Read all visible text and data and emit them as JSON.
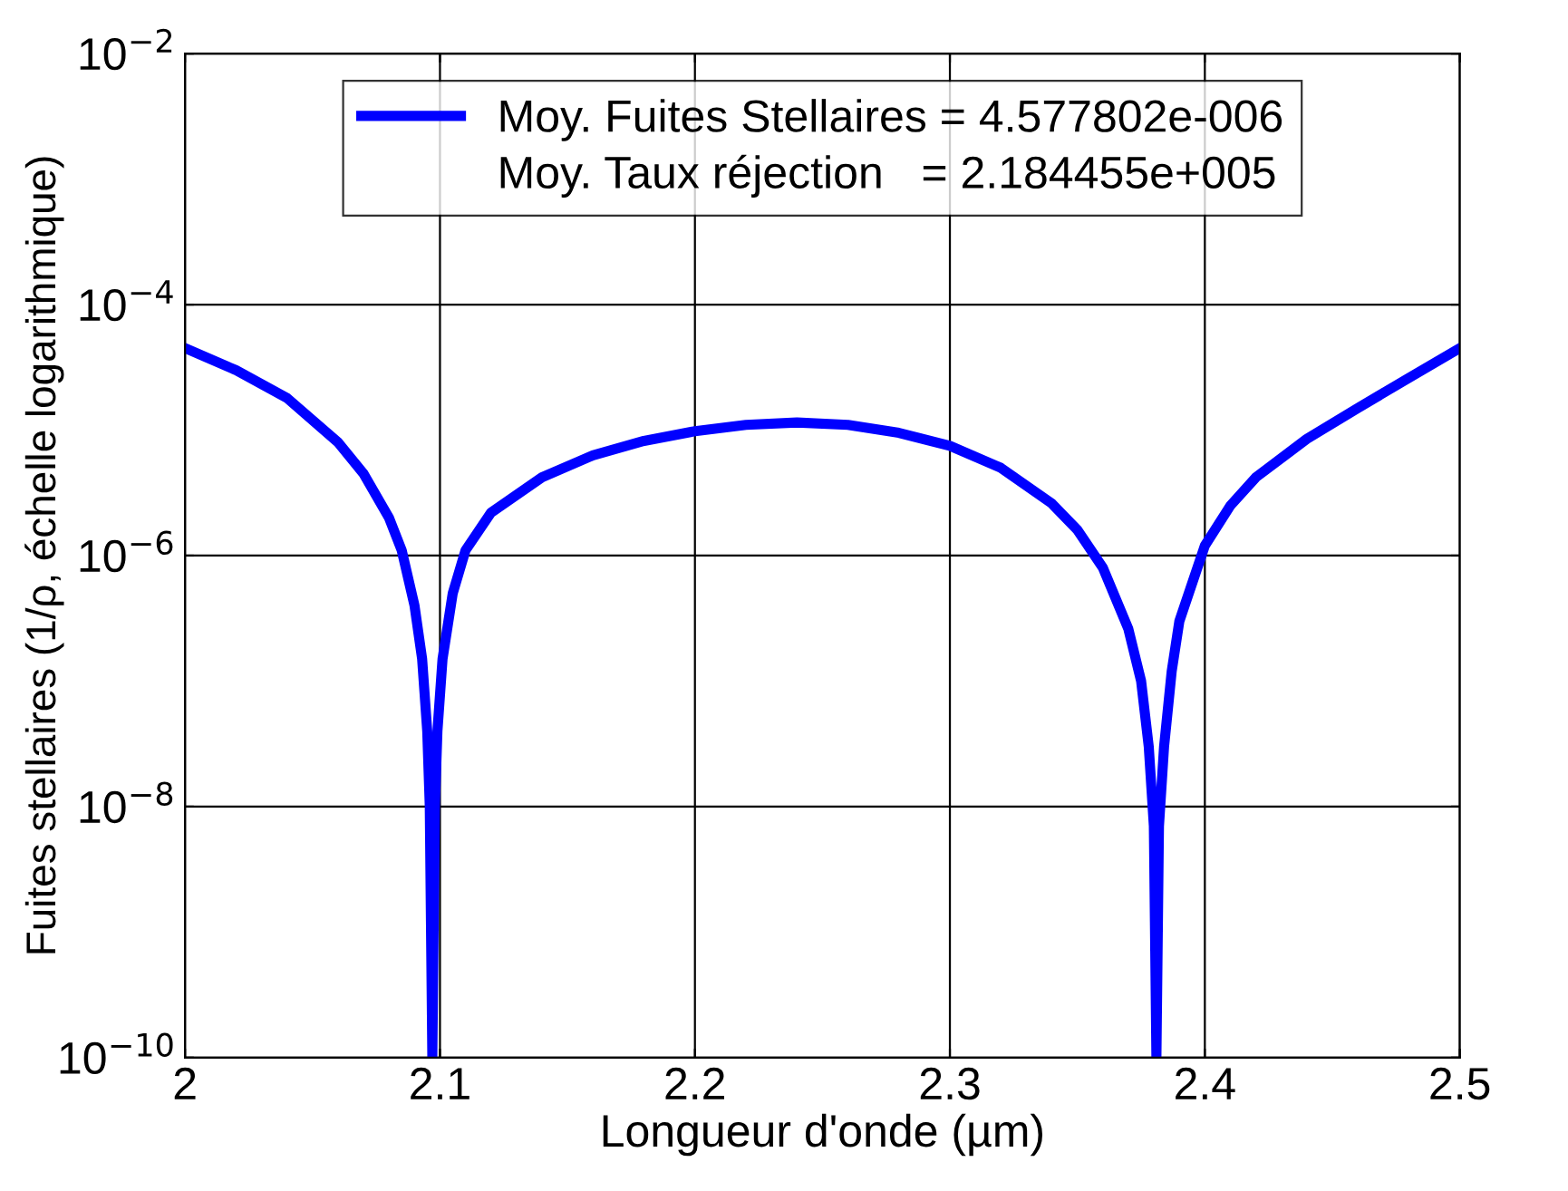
{
  "chart_data": {
    "type": "line",
    "xlabel": "Longueur d'onde (µm)",
    "ylabel": "Fuites stellaires (1/ρ, échelle logarithmique)",
    "log": "y",
    "grid": true,
    "legend": "top",
    "line_style": "solid",
    "marker": "none",
    "xlim": [
      2,
      2.5
    ],
    "xticks": [
      2,
      2.1,
      2.2,
      2.3,
      2.4,
      2.5
    ],
    "ylim": [
      1e-10,
      0.01
    ],
    "yticks": [
      {
        "value": 1e-10,
        "label": "10$^{−10}$"
      },
      {
        "value": 1e-08,
        "label": "10$^{−8}$"
      },
      {
        "value": 1e-06,
        "label": "10$^{−6}$"
      },
      {
        "value": 0.0001,
        "label": "10$^{−4}$"
      },
      {
        "value": 0.01,
        "label": "10$^{−2}$"
      }
    ],
    "annotations": [
      "Moy. Taux réjection   = 2.184455e+005"
    ],
    "series": [
      {
        "name": "Moy. Fuites Stellaires = 4.577802e-006",
        "color": "#0000ff",
        "x": [
          2.0,
          2.02,
          2.04,
          2.06,
          2.07,
          2.08,
          2.085,
          2.09,
          2.093,
          2.095,
          2.096,
          2.097,
          2.098,
          2.099,
          2.101,
          2.105,
          2.11,
          2.12,
          2.14,
          2.16,
          2.18,
          2.2,
          2.22,
          2.24,
          2.26,
          2.28,
          2.3,
          2.32,
          2.34,
          2.35,
          2.36,
          2.37,
          2.375,
          2.378,
          2.38,
          2.381,
          2.382,
          2.384,
          2.387,
          2.39,
          2.4,
          2.41,
          2.42,
          2.44,
          2.46,
          2.48,
          2.5
        ],
        "values": [
          4.5e-05,
          3e-05,
          1.8e-05,
          8e-06,
          4.5e-06,
          2e-06,
          1.1e-06,
          4e-07,
          1.5e-07,
          4e-08,
          1e-08,
          1e-10,
          1e-08,
          4e-08,
          1.5e-07,
          5e-07,
          1.1e-06,
          2.2e-06,
          4.2e-06,
          6.3e-06,
          8.2e-06,
          9.8e-06,
          1.1e-05,
          1.15e-05,
          1.1e-05,
          9.5e-06,
          7.5e-06,
          5e-06,
          2.6e-06,
          1.6e-06,
          8e-07,
          2.6e-07,
          1e-07,
          3e-08,
          7e-09,
          1e-10,
          7e-09,
          3e-08,
          1.2e-07,
          3e-07,
          1.2e-06,
          2.5e-06,
          4.2e-06,
          8.5e-06,
          1.5e-05,
          2.6e-05,
          4.5e-05
        ]
      }
    ]
  }
}
